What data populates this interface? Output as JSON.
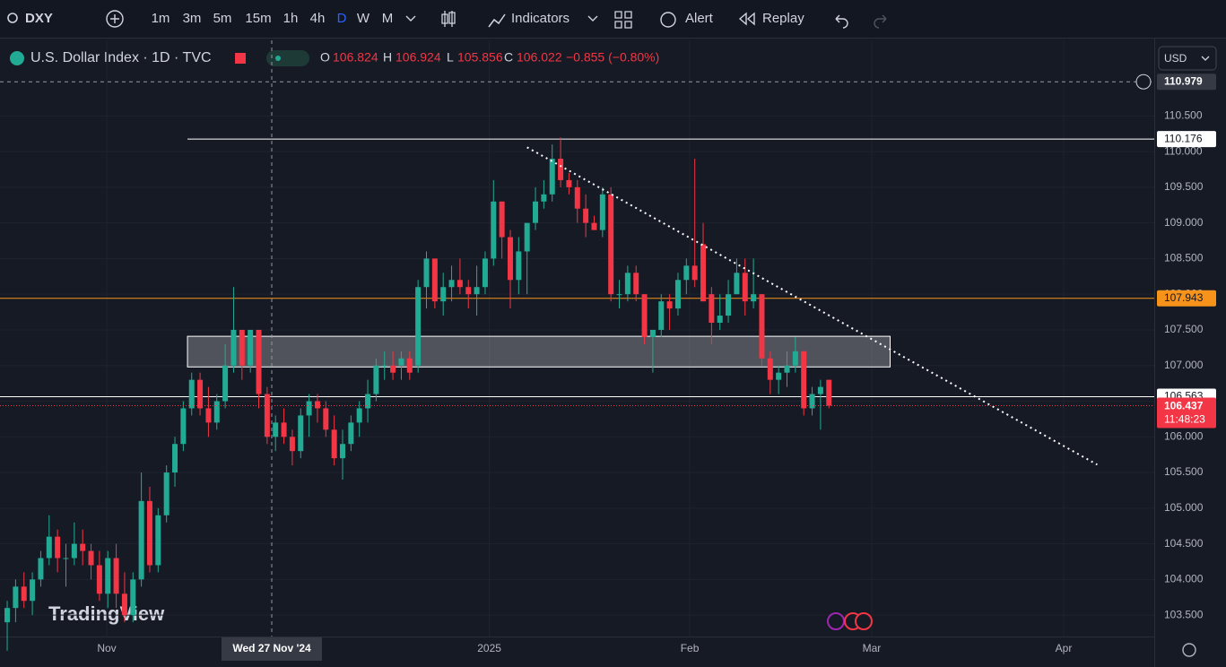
{
  "toolbar": {
    "symbol": "DXY",
    "intervals": [
      "1m",
      "3m",
      "5m",
      "15m",
      "1h",
      "4h",
      "D",
      "W",
      "M"
    ],
    "indicators": "Indicators",
    "alert": "Alert",
    "replay": "Replay"
  },
  "legend": {
    "title": "U.S. Dollar Index · 1D · TVC",
    "open": {
      "label": "O",
      "value": "106.824"
    },
    "high": {
      "label": "H",
      "value": "106.924"
    },
    "low": {
      "label": "L",
      "value": "105.856"
    },
    "close": {
      "label": "C",
      "value": "106.022"
    },
    "change": "−0.855 (−0.80%)"
  },
  "currency": "USD",
  "watermark": "TradingView",
  "chart_data": {
    "type": "candlestick",
    "up_color": "#22ab94",
    "down_color": "#f23645",
    "xlim": [
      -0.86,
      136.8
    ],
    "ylim": [
      103.2,
      111.56
    ],
    "yticks": [
      {
        "value": 103.5,
        "label": "103.500"
      },
      {
        "value": 104,
        "label": "104.000"
      },
      {
        "value": 104.5,
        "label": "104.500"
      },
      {
        "value": 105,
        "label": "105.000"
      },
      {
        "value": 105.5,
        "label": "105.500"
      },
      {
        "value": 106,
        "label": "106.000"
      },
      {
        "value": 106.5,
        "label": "106.500"
      },
      {
        "value": 107,
        "label": "107.000"
      },
      {
        "value": 107.5,
        "label": "107.500"
      },
      {
        "value": 108,
        "label": "108.000"
      },
      {
        "value": 108.5,
        "label": "108.500"
      },
      {
        "value": 109,
        "label": "109.000"
      },
      {
        "value": 109.5,
        "label": "109.500"
      },
      {
        "value": 110,
        "label": "110.000"
      },
      {
        "value": 110.5,
        "label": "110.500"
      }
    ],
    "xticks": [
      {
        "value": 11.87,
        "label": "Nov"
      },
      {
        "value": 57.5,
        "label": "2025"
      },
      {
        "value": 81.4,
        "label": "Feb"
      },
      {
        "value": 103.1,
        "label": "Mar"
      },
      {
        "value": 126,
        "label": "Apr"
      }
    ],
    "crosshair": {
      "x": {
        "value": 31.55,
        "label": "Wed 27 Nov '24"
      },
      "y": {
        "value": 110.979,
        "label": "110.979"
      }
    },
    "hlines": [
      {
        "value": 110.176,
        "label": "110.176",
        "color": "#ffffff"
      },
      {
        "value": 107.943,
        "label": "107.943",
        "color": "#f7931a"
      },
      {
        "value": 106.563,
        "label": "106.563",
        "color": "#ffffff"
      }
    ],
    "zone": {
      "x": [
        21.5,
        105.3
      ],
      "y": [
        106.98,
        107.41
      ]
    },
    "trendline": {
      "x": [
        62,
        130
      ],
      "y": [
        110.06,
        105.61
      ]
    },
    "last_price": {
      "value": 106.437,
      "label": "106.437",
      "countdown": "11:48:23"
    },
    "ohlc": [
      [
        103.4,
        103.7,
        103.0,
        103.6
      ],
      [
        103.6,
        104.0,
        103.4,
        103.9
      ],
      [
        103.9,
        104.1,
        103.6,
        103.7
      ],
      [
        103.7,
        104.1,
        103.5,
        104.0
      ],
      [
        104.0,
        104.4,
        103.9,
        104.3
      ],
      [
        104.3,
        104.9,
        104.2,
        104.6
      ],
      [
        104.6,
        104.7,
        104.1,
        104.3
      ],
      [
        104.3,
        104.5,
        103.9,
        104.3
      ],
      [
        104.3,
        104.8,
        104.2,
        104.5
      ],
      [
        104.5,
        104.7,
        104.2,
        104.4
      ],
      [
        104.4,
        104.5,
        104.0,
        104.2
      ],
      [
        104.2,
        104.4,
        103.7,
        103.8
      ],
      [
        103.8,
        104.4,
        103.6,
        104.3
      ],
      [
        104.3,
        104.5,
        103.6,
        103.8
      ],
      [
        103.8,
        104.1,
        103.4,
        103.5
      ],
      [
        103.5,
        104.1,
        103.4,
        104.0
      ],
      [
        104.0,
        105.5,
        103.9,
        105.1
      ],
      [
        105.1,
        105.3,
        104.1,
        104.2
      ],
      [
        104.2,
        105.0,
        104.1,
        104.9
      ],
      [
        104.9,
        105.6,
        104.8,
        105.5
      ],
      [
        105.5,
        106.0,
        105.3,
        105.9
      ],
      [
        105.9,
        106.5,
        105.8,
        106.4
      ],
      [
        106.4,
        106.9,
        106.3,
        106.8
      ],
      [
        106.8,
        106.9,
        106.3,
        106.4
      ],
      [
        106.4,
        106.7,
        106.0,
        106.2
      ],
      [
        106.2,
        106.6,
        106.1,
        106.5
      ],
      [
        106.5,
        107.3,
        106.4,
        107.0
      ],
      [
        107.0,
        108.1,
        106.9,
        107.5
      ],
      [
        107.5,
        107.5,
        106.8,
        107.0
      ],
      [
        107.0,
        107.5,
        106.9,
        107.5
      ],
      [
        107.5,
        107.5,
        106.4,
        106.6
      ],
      [
        106.6,
        106.7,
        105.9,
        106.0
      ],
      [
        106.0,
        106.3,
        105.8,
        106.2
      ],
      [
        106.2,
        106.4,
        105.9,
        106.0
      ],
      [
        106.0,
        106.1,
        105.6,
        105.8
      ],
      [
        105.8,
        106.4,
        105.7,
        106.3
      ],
      [
        106.3,
        106.6,
        106.0,
        106.5
      ],
      [
        106.5,
        106.6,
        106.2,
        106.4
      ],
      [
        106.4,
        106.5,
        106.0,
        106.1
      ],
      [
        106.1,
        106.3,
        105.6,
        105.7
      ],
      [
        105.7,
        106.1,
        105.4,
        105.9
      ],
      [
        105.9,
        106.3,
        105.8,
        106.2
      ],
      [
        106.2,
        106.5,
        106.0,
        106.4
      ],
      [
        106.4,
        106.8,
        106.2,
        106.6
      ],
      [
        106.6,
        107.1,
        106.5,
        107.0
      ],
      [
        107.0,
        107.2,
        106.8,
        107.0
      ],
      [
        107.0,
        107.2,
        106.8,
        106.9
      ],
      [
        107.0,
        107.2,
        106.8,
        107.1
      ],
      [
        107.1,
        107.2,
        106.8,
        106.9
      ],
      [
        107.0,
        108.2,
        106.9,
        108.1
      ],
      [
        108.1,
        108.6,
        107.8,
        108.5
      ],
      [
        108.5,
        108.5,
        107.8,
        107.9
      ],
      [
        107.9,
        108.3,
        107.7,
        108.1
      ],
      [
        108.1,
        108.4,
        107.9,
        108.2
      ],
      [
        108.2,
        108.5,
        108.0,
        108.1
      ],
      [
        108.1,
        108.2,
        107.8,
        108.0
      ],
      [
        108.0,
        108.4,
        107.7,
        108.1
      ],
      [
        108.1,
        108.6,
        108.0,
        108.5
      ],
      [
        108.5,
        109.6,
        108.4,
        109.3
      ],
      [
        109.3,
        109.3,
        108.5,
        108.8
      ],
      [
        108.8,
        108.9,
        107.8,
        108.2
      ],
      [
        108.2,
        108.8,
        108.0,
        108.6
      ],
      [
        108.6,
        109.0,
        108.0,
        109.0
      ],
      [
        109.0,
        109.5,
        108.9,
        109.3
      ],
      [
        109.3,
        109.6,
        109.2,
        109.4
      ],
      [
        109.4,
        110.1,
        109.3,
        109.9
      ],
      [
        109.9,
        110.2,
        109.5,
        109.6
      ],
      [
        109.6,
        109.7,
        109.4,
        109.5
      ],
      [
        109.5,
        109.6,
        109.0,
        109.2
      ],
      [
        109.2,
        109.4,
        108.8,
        109.0
      ],
      [
        109.0,
        109.1,
        108.9,
        108.9
      ],
      [
        108.9,
        109.5,
        108.8,
        109.4
      ],
      [
        109.4,
        109.5,
        107.9,
        108.0
      ],
      [
        108.0,
        108.2,
        107.8,
        108.0
      ],
      [
        108.0,
        108.4,
        107.9,
        108.3
      ],
      [
        108.3,
        108.4,
        107.9,
        108.0
      ],
      [
        108.0,
        108.0,
        107.3,
        107.4
      ],
      [
        107.4,
        107.5,
        106.9,
        107.5
      ],
      [
        107.5,
        108.0,
        107.4,
        107.9
      ],
      [
        107.9,
        108.0,
        107.5,
        107.8
      ],
      [
        107.8,
        108.3,
        107.7,
        108.2
      ],
      [
        108.2,
        108.5,
        108.0,
        108.4
      ],
      [
        108.4,
        109.9,
        108.1,
        108.2
      ],
      [
        108.7,
        109.0,
        107.9,
        107.9
      ],
      [
        108.0,
        108.1,
        107.3,
        107.6
      ],
      [
        107.6,
        108.0,
        107.5,
        107.7
      ],
      [
        107.7,
        108.2,
        107.6,
        108.0
      ],
      [
        108.0,
        108.5,
        108.0,
        108.3
      ],
      [
        108.3,
        108.5,
        107.7,
        107.9
      ],
      [
        107.9,
        108.5,
        107.8,
        108.0
      ],
      [
        108.0,
        108.0,
        107.0,
        107.1
      ],
      [
        107.1,
        107.2,
        106.6,
        106.8
      ],
      [
        106.8,
        107.0,
        106.6,
        106.9
      ],
      [
        106.9,
        107.2,
        106.7,
        107.0
      ],
      [
        107.0,
        107.4,
        106.9,
        107.2
      ],
      [
        107.2,
        107.2,
        106.3,
        106.4
      ],
      [
        106.4,
        106.7,
        106.3,
        106.6
      ],
      [
        106.6,
        106.8,
        106.1,
        106.7
      ],
      [
        106.8,
        106.8,
        106.4,
        106.437
      ]
    ]
  }
}
